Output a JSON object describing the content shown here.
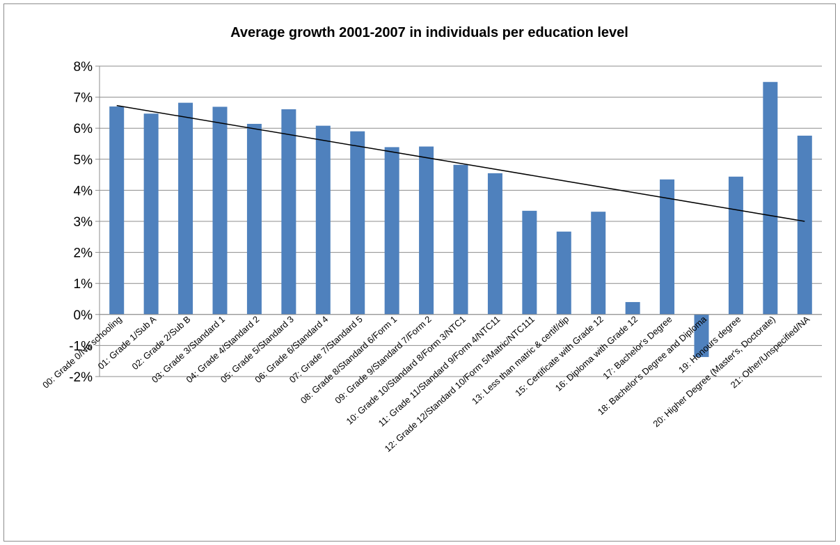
{
  "chart_data": {
    "type": "bar",
    "title": "Average growth 2001-2007 in individuals per education level",
    "xlabel": "",
    "ylabel": "",
    "ylim": [
      -2,
      8
    ],
    "yticks": [
      "-2%",
      "-1%",
      "0%",
      "1%",
      "2%",
      "3%",
      "4%",
      "5%",
      "6%",
      "7%",
      "8%"
    ],
    "ytick_values": [
      -2,
      -1,
      0,
      1,
      2,
      3,
      4,
      5,
      6,
      7,
      8
    ],
    "grid": true,
    "legend": "none",
    "bar_color": "#4f81bd",
    "categories": [
      "00: Grade 0/No schooling",
      "01: Grade 1/Sub A",
      "02: Grade 2/Sub B",
      "03: Grade 3/Standard 1",
      "04: Grade 4/Standard 2",
      "05: Grade 5/Standard 3",
      "06: Grade 6/Standard 4",
      "07: Grade 7/Standard 5",
      "08: Grade 8/Standard 6/Form 1",
      "09: Grade 9/Standard 7/Form 2",
      "10: Grade 10/Standard 8/Form 3/NTC1",
      "11: Grade 11/Standard 9/Form 4/NTC11",
      "12: Grade 12/Standard 10/Form 5/Matric/NTC111",
      "13: Less than matric & certif/dip",
      "15: Certificate with Grade 12",
      "16: Diploma with Grade 12",
      "17: Bachelor's Degree",
      "18: Bachelor's Degree and Diploma",
      "19: Honours degree",
      "20: Higher Degree (Master's, Doctorate)",
      "21: Other/Unspecified/NA"
    ],
    "values": [
      6.7,
      6.47,
      6.82,
      6.69,
      6.14,
      6.61,
      6.08,
      5.9,
      5.39,
      5.41,
      4.82,
      4.55,
      3.34,
      2.67,
      3.31,
      0.4,
      4.35,
      -1.37,
      4.44,
      7.49,
      5.76
    ],
    "trendline": {
      "type": "linear",
      "start": 6.73,
      "end": 3.0,
      "color": "#000000"
    }
  }
}
